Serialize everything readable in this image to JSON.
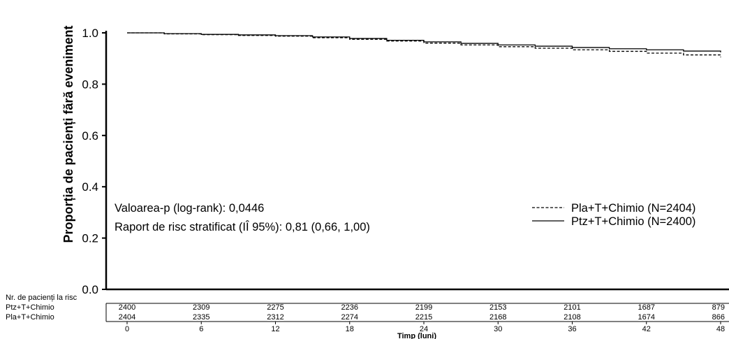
{
  "chart_data": {
    "type": "line",
    "title": "",
    "ylabel": "Proporția de pacienți fără eveniment",
    "xlabel": "Timp (luni)",
    "ylim": [
      0,
      1.0
    ],
    "xlim": [
      0,
      48
    ],
    "yticks": [
      "0.0",
      "0.2",
      "0.4",
      "0.6",
      "0.8",
      "1.0"
    ],
    "xticks": [
      "0",
      "6",
      "12",
      "18",
      "24",
      "30",
      "36",
      "42",
      "48"
    ],
    "grid": false,
    "legend_position": "right",
    "annotations": {
      "pvalue": "Valoarea-p (log-rank): 0,0446",
      "hazard_ratio": "Raport de risc stratificat (IÎ 95%): 0,81 (0,66, 1,00)"
    },
    "series": [
      {
        "name": "Pla+T+Chimio (N=2404)",
        "style": "dashed",
        "x": [
          0,
          3,
          6,
          9,
          12,
          15,
          18,
          21,
          24,
          27,
          30,
          33,
          36,
          39,
          42,
          45,
          48
        ],
        "y": [
          1.0,
          0.996,
          0.993,
          0.99,
          0.987,
          0.981,
          0.975,
          0.968,
          0.96,
          0.953,
          0.946,
          0.94,
          0.934,
          0.928,
          0.921,
          0.914,
          0.905
        ]
      },
      {
        "name": "Ptz+T+Chimio (N=2400)",
        "style": "solid",
        "x": [
          0,
          3,
          6,
          9,
          12,
          15,
          18,
          21,
          24,
          27,
          30,
          33,
          36,
          39,
          42,
          45,
          48
        ],
        "y": [
          1.0,
          0.997,
          0.994,
          0.992,
          0.989,
          0.984,
          0.978,
          0.971,
          0.965,
          0.959,
          0.953,
          0.948,
          0.943,
          0.938,
          0.934,
          0.929,
          0.924
        ]
      }
    ],
    "risk_table": {
      "header": "Nr. de pacienți la risc",
      "rows": [
        {
          "label": "Ptz+T+Chimio",
          "values": [
            "2400",
            "2309",
            "2275",
            "2236",
            "2199",
            "2153",
            "2101",
            "1687",
            "879"
          ]
        },
        {
          "label": "Pla+T+Chimio",
          "values": [
            "2404",
            "2335",
            "2312",
            "2274",
            "2215",
            "2168",
            "2108",
            "1674",
            "866"
          ]
        }
      ]
    }
  }
}
